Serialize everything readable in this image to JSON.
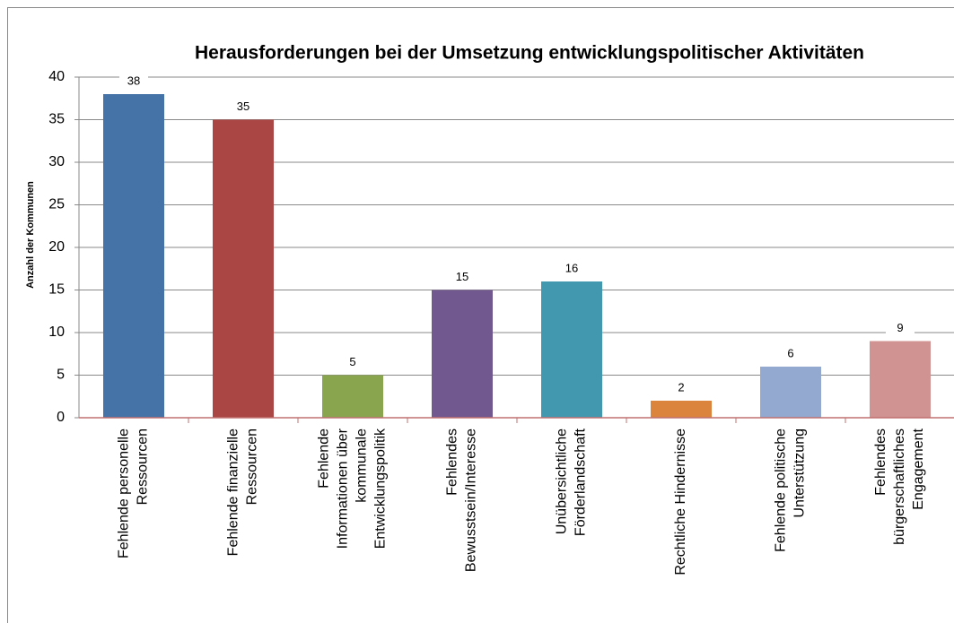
{
  "chart_data": {
    "type": "bar",
    "title": "Herausforderungen bei der Umsetzung entwicklungspolitischer Aktivitäten",
    "y_label": "Anzahl der Kommunen",
    "categories": [
      "Fehlende personelle\nRessourcen",
      "Fehlende finanzielle\nRessourcen",
      "Fehlende\nInformationen über\nkommunale\nEntwicklungspolitik",
      "Fehlendes\nBewusstsein/Interesse",
      "Unübersichtliche\nFörderlandschaft",
      "Rechtliche Hindernisse",
      "Fehlende politische\nUnterstützung",
      "Fehlendes\nbürgerschaftliches\nEngagement"
    ],
    "values": [
      38,
      35,
      5,
      15,
      16,
      2,
      6,
      9
    ],
    "colors": [
      "#4572a7",
      "#aa4643",
      "#89a54e",
      "#71588f",
      "#4198af",
      "#db843d",
      "#93a9cf",
      "#d19392"
    ],
    "ylim": [
      0,
      40
    ],
    "yticks": [
      0,
      5,
      10,
      15,
      20,
      25,
      30,
      35,
      40
    ],
    "grid": true
  }
}
